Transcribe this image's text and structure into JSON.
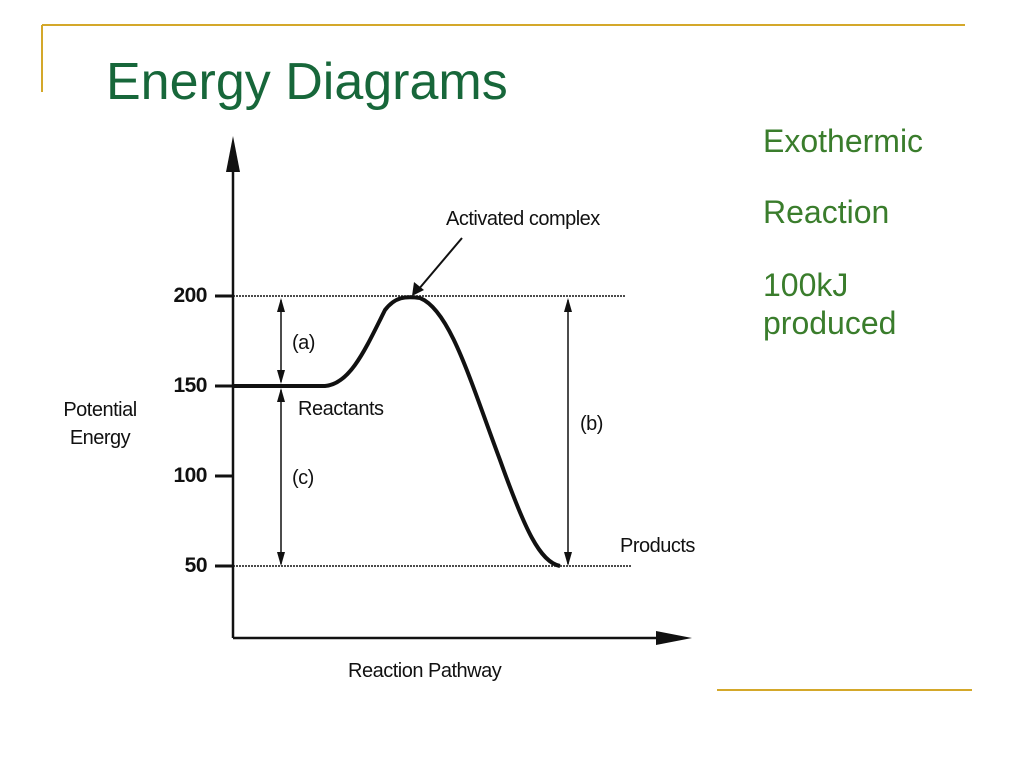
{
  "title": "Energy Diagrams",
  "side_text": [
    "Exothermic",
    "Reaction",
    "100kJ produced"
  ],
  "diagram": {
    "y_axis_label": "Potential Energy",
    "x_axis_label": "Reaction Pathway",
    "y_ticks": [
      "200",
      "150",
      "100",
      "50"
    ],
    "labels": {
      "activated_complex": "Activated complex",
      "reactants": "Reactants",
      "products": "Products",
      "a": "(a)",
      "b": "(b)",
      "c": "(c)"
    }
  }
}
